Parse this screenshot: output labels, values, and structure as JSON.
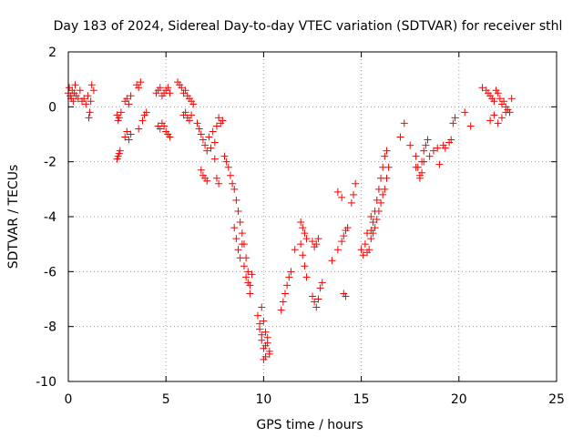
{
  "chart_data": {
    "type": "scatter",
    "title": "Day 183 of 2024, Sidereal Day-to-day VTEC variation (SDTVAR) for receiver sthl",
    "xlabel": "GPS time / hours",
    "ylabel": "SDTVAR / TECUs",
    "xlim": [
      0,
      25
    ],
    "ylim": [
      -10,
      2
    ],
    "xticks": [
      0,
      5,
      10,
      15,
      20,
      25
    ],
    "xtick_labels": [
      "0",
      "5",
      "10",
      "15",
      "20",
      "25"
    ],
    "yticks": [
      -10,
      -8,
      -6,
      -4,
      -2,
      0,
      2
    ],
    "ytick_labels": [
      "-10",
      "-8",
      "-6",
      "-4",
      "-2",
      "0",
      "2"
    ],
    "grid": true,
    "marker": "+",
    "color": "#ff0000",
    "series": [
      {
        "name": "SDTVAR",
        "x": [
          0.0,
          0.05,
          0.1,
          0.15,
          0.2,
          0.25,
          0.3,
          0.35,
          0.4,
          0.5,
          0.6,
          0.7,
          0.8,
          0.9,
          1.0,
          1.1,
          1.2,
          1.3,
          1.05,
          1.15,
          2.5,
          2.55,
          2.6,
          2.65,
          2.5,
          2.55,
          2.6,
          2.7,
          2.9,
          3.0,
          3.1,
          3.2,
          2.9,
          3.0,
          3.1,
          3.2,
          3.5,
          3.6,
          3.7,
          3.6,
          3.8,
          3.9,
          4.0,
          4.5,
          4.6,
          4.7,
          4.8,
          4.9,
          5.0,
          5.1,
          5.2,
          4.6,
          4.7,
          4.8,
          4.9,
          5.0,
          5.1,
          5.2,
          5.6,
          5.7,
          5.8,
          5.9,
          6.0,
          6.1,
          6.2,
          6.3,
          6.4,
          5.9,
          6.0,
          6.1,
          6.2,
          6.3,
          6.6,
          6.7,
          6.8,
          6.9,
          7.0,
          7.1,
          7.2,
          7.3,
          7.4,
          7.5,
          7.6,
          7.7,
          7.8,
          7.9,
          6.8,
          6.9,
          7.0,
          7.1,
          7.5,
          7.6,
          7.7,
          8.0,
          8.1,
          8.2,
          8.3,
          8.4,
          8.5,
          8.6,
          8.7,
          8.8,
          8.9,
          9.0,
          9.1,
          9.2,
          9.3,
          8.5,
          8.6,
          8.7,
          8.8,
          8.9,
          9.0,
          9.1,
          9.2,
          9.3,
          9.4,
          9.7,
          9.8,
          9.9,
          10.0,
          10.1,
          10.2,
          10.3,
          9.8,
          9.9,
          10.0,
          10.1,
          10.2,
          10.3,
          9.9,
          10.0,
          10.1,
          10.9,
          11.0,
          11.1,
          11.2,
          11.3,
          11.4,
          11.6,
          11.9,
          12.0,
          12.1,
          12.2,
          11.9,
          12.0,
          12.1,
          12.2,
          12.5,
          12.6,
          12.7,
          12.8,
          12.5,
          12.6,
          12.7,
          12.8,
          12.9,
          13.0,
          13.5,
          13.8,
          14.0,
          14.1,
          14.2,
          14.3,
          14.5,
          14.6,
          14.7,
          14.1,
          14.2,
          13.8,
          14.0,
          15.0,
          15.1,
          15.2,
          15.3,
          15.4,
          15.5,
          15.6,
          15.7,
          15.8,
          15.9,
          16.0,
          16.1,
          16.2,
          16.3,
          16.4,
          15.5,
          15.6,
          15.7,
          15.8,
          15.9,
          16.0,
          16.1,
          16.2,
          16.3,
          15.3,
          15.5,
          17.0,
          17.2,
          17.5,
          17.8,
          18.0,
          18.1,
          18.2,
          18.3,
          18.4,
          17.8,
          17.9,
          18.0,
          18.1,
          18.2,
          18.5,
          18.7,
          18.9,
          19.0,
          19.2,
          19.3,
          19.5,
          19.6,
          19.7,
          19.8,
          20.3,
          20.6,
          21.2,
          21.4,
          21.5,
          21.6,
          21.7,
          21.8,
          21.9,
          22.0,
          22.1,
          22.2,
          22.3,
          22.4,
          22.5,
          22.6,
          22.7,
          21.6,
          21.8,
          22.0,
          22.2,
          22.4
        ],
        "y": [
          0.5,
          0.7,
          0.4,
          0.3,
          0.6,
          0.2,
          0.5,
          0.8,
          0.4,
          0.3,
          0.6,
          0.2,
          0.3,
          0.1,
          0.4,
          -0.2,
          0.8,
          0.6,
          -0.4,
          0.2,
          -1.9,
          -1.8,
          -1.7,
          -1.6,
          -0.3,
          -0.5,
          -0.4,
          -0.2,
          -1.1,
          -0.9,
          -1.2,
          -1.0,
          0.2,
          0.3,
          0.1,
          0.4,
          0.8,
          0.7,
          0.9,
          -0.8,
          -0.5,
          -0.3,
          -0.2,
          0.5,
          0.6,
          0.7,
          0.4,
          0.5,
          0.6,
          0.7,
          0.5,
          -0.7,
          -0.8,
          -0.6,
          -0.7,
          -0.9,
          -1.0,
          -1.1,
          0.9,
          0.8,
          0.7,
          0.5,
          0.6,
          0.4,
          0.3,
          0.2,
          0.1,
          -0.3,
          -0.2,
          -0.4,
          -0.5,
          -0.3,
          -0.6,
          -0.8,
          -1.0,
          -1.2,
          -1.4,
          -1.6,
          -1.1,
          -1.5,
          -0.9,
          -1.3,
          -0.7,
          -0.4,
          -0.6,
          -0.5,
          -2.3,
          -2.5,
          -2.6,
          -2.7,
          -1.9,
          -2.6,
          -2.8,
          -1.8,
          -2.0,
          -2.2,
          -2.5,
          -2.8,
          -3.0,
          -3.4,
          -3.8,
          -4.2,
          -4.6,
          -5.0,
          -5.5,
          -6.0,
          -6.5,
          -4.4,
          -4.8,
          -5.2,
          -5.5,
          -5.0,
          -5.8,
          -6.2,
          -6.4,
          -6.8,
          -6.1,
          -7.6,
          -7.9,
          -8.3,
          -8.8,
          -9.1,
          -8.6,
          -8.9,
          -8.1,
          -8.5,
          -9.2,
          -8.7,
          -8.4,
          -9.0,
          -7.3,
          -7.8,
          -8.2,
          -7.4,
          -7.1,
          -6.8,
          -6.5,
          -6.2,
          -6.0,
          -5.2,
          -5.0,
          -5.4,
          -5.8,
          -6.2,
          -4.2,
          -4.4,
          -4.6,
          -4.8,
          -4.9,
          -5.1,
          -5.0,
          -4.8,
          -6.9,
          -7.1,
          -7.3,
          -7.0,
          -6.6,
          -6.4,
          -5.6,
          -5.2,
          -4.9,
          -4.7,
          -4.5,
          -4.4,
          -3.5,
          -3.2,
          -2.8,
          -6.8,
          -6.9,
          -3.1,
          -3.3,
          -5.2,
          -5.4,
          -5.0,
          -5.3,
          -5.2,
          -4.8,
          -4.6,
          -4.4,
          -4.1,
          -3.8,
          -3.5,
          -3.2,
          -3.0,
          -2.6,
          -2.2,
          -4.5,
          -4.2,
          -3.8,
          -3.4,
          -3.0,
          -2.6,
          -2.2,
          -1.8,
          -1.6,
          -4.6,
          -4.0,
          -1.1,
          -0.6,
          -1.4,
          -2.2,
          -2.5,
          -2.0,
          -1.6,
          -1.4,
          -1.2,
          -1.8,
          -2.2,
          -2.6,
          -2.4,
          -2.0,
          -1.8,
          -1.6,
          -1.5,
          -2.1,
          -1.4,
          -1.5,
          -1.3,
          -1.2,
          -0.6,
          -0.4,
          -0.2,
          -0.7,
          0.7,
          0.6,
          0.5,
          0.4,
          0.3,
          0.2,
          0.6,
          0.5,
          0.3,
          0.1,
          0.2,
          0.0,
          -0.1,
          -0.2,
          0.3,
          -0.5,
          -0.3,
          -0.6,
          -0.4,
          -0.2
        ]
      }
    ]
  }
}
